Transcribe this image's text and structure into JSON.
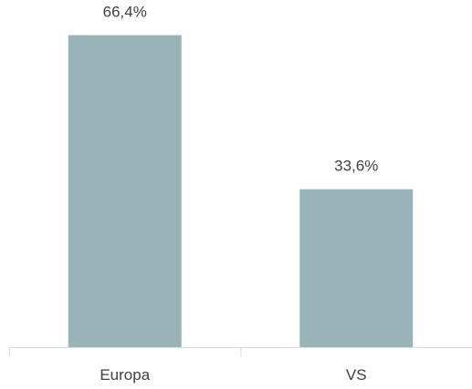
{
  "chart_data": {
    "type": "bar",
    "categories": [
      "Europa",
      "VS"
    ],
    "values": [
      66.4,
      33.6
    ],
    "value_labels": [
      "66,4%",
      "33,6%"
    ],
    "ylim": [
      0,
      70
    ],
    "grid": false,
    "legend": "none",
    "colors": {
      "bar": "#98b4b9",
      "text": "#404040",
      "axis": "#d9d9d9"
    }
  }
}
